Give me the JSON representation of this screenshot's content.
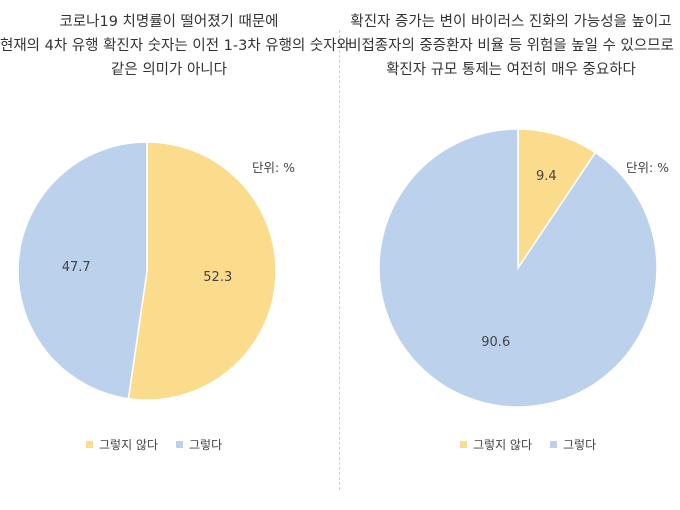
{
  "chart_data": [
    {
      "type": "pie",
      "title": [
        "코로나19 치명률이 떨어졌기 때문에",
        "현재의 4차 유행 확진자 숫자는 이전 1-3차 유행의 숫자와",
        "같은 의미가 아니다"
      ],
      "unit": "단위: %",
      "categories": [
        "그렇지 않다",
        "그렇다"
      ],
      "values": [
        52.3,
        47.7
      ],
      "colors": [
        "#fadc8c",
        "#bcd1ec"
      ],
      "legend_position": "bottom"
    },
    {
      "type": "pie",
      "title": [
        "확진자 증가는 변이 바이러스 진화의 가능성을 높이고",
        "비접종자의 중증환자 비율 등 위험을 높일 수 있으므로",
        "확진자 규모 통제는 여전히 매우 중요하다"
      ],
      "unit": "단위: %",
      "categories": [
        "그렇지 않다",
        "그렇다"
      ],
      "values": [
        9.4,
        90.6
      ],
      "colors": [
        "#fadc8c",
        "#bcd1ec"
      ],
      "legend_position": "bottom"
    }
  ]
}
